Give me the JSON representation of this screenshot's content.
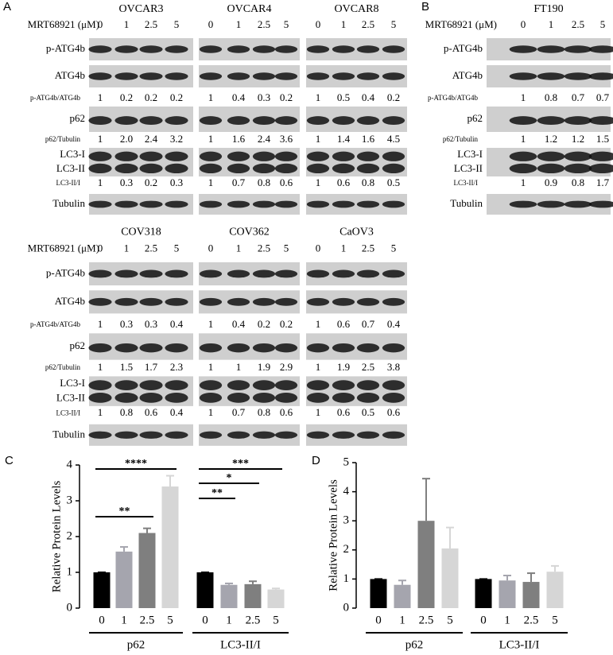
{
  "panel_a": {
    "label": "A",
    "treatment": "MRT68921 (μM)",
    "doses": [
      "0",
      "1",
      "2.5",
      "5"
    ],
    "rows": [
      "p-ATG4b",
      "ATG4b",
      "p62",
      "LC3-I",
      "LC3-II",
      "Tubulin"
    ],
    "ratio_names": [
      "p-ATG4b/ATG4b",
      "p62/Tubulin",
      "LC3-II/I"
    ],
    "cell_lines": [
      {
        "name": "OVCAR3",
        "ratios": [
          [
            "1",
            "0.2",
            "0.2",
            "0.2"
          ],
          [
            "1",
            "2.0",
            "2.4",
            "3.2"
          ],
          [
            "1",
            "0.3",
            "0.2",
            "0.3"
          ]
        ]
      },
      {
        "name": "OVCAR4",
        "ratios": [
          [
            "1",
            "0.4",
            "0.3",
            "0.2"
          ],
          [
            "1",
            "1.6",
            "2.4",
            "3.6"
          ],
          [
            "1",
            "0.7",
            "0.8",
            "0.6"
          ]
        ]
      },
      {
        "name": "OVCAR8",
        "ratios": [
          [
            "1",
            "0.5",
            "0.4",
            "0.2"
          ],
          [
            "1",
            "1.4",
            "1.6",
            "4.5"
          ],
          [
            "1",
            "0.6",
            "0.8",
            "0.5"
          ]
        ]
      },
      {
        "name": "COV318",
        "ratios": [
          [
            "1",
            "0.3",
            "0.3",
            "0.4"
          ],
          [
            "1",
            "1.5",
            "1.7",
            "2.3"
          ],
          [
            "1",
            "0.8",
            "0.6",
            "0.4"
          ]
        ]
      },
      {
        "name": "COV362",
        "ratios": [
          [
            "1",
            "0.4",
            "0.2",
            "0.2"
          ],
          [
            "1",
            "1",
            "1.9",
            "2.9"
          ],
          [
            "1",
            "0.7",
            "0.8",
            "0.6"
          ]
        ]
      },
      {
        "name": "CaOV3",
        "ratios": [
          [
            "1",
            "0.6",
            "0.7",
            "0.4"
          ],
          [
            "1",
            "1.9",
            "2.5",
            "3.8"
          ],
          [
            "1",
            "0.6",
            "0.5",
            "0.6"
          ]
        ]
      }
    ]
  },
  "panel_b": {
    "label": "B",
    "treatment": "MRT68921 (μM)",
    "doses": [
      "0",
      "1",
      "2.5",
      "5"
    ],
    "rows": [
      "p-ATG4b",
      "ATG4b",
      "p62",
      "LC3-I",
      "LC3-II",
      "Tubulin"
    ],
    "ratio_names": [
      "p-ATG4b/ATG4b",
      "p62/Tubulin",
      "LC3-II/I"
    ],
    "cell_lines": [
      {
        "name": "FT190",
        "ratios": [
          [
            "1",
            "0.8",
            "0.7",
            "0.7"
          ],
          [
            "1",
            "1.2",
            "1.2",
            "1.5"
          ],
          [
            "1",
            "0.9",
            "0.8",
            "1.7"
          ]
        ]
      }
    ]
  },
  "chart_data": [
    {
      "type": "bar",
      "label": "C",
      "ylabel": "Relative Protein Levels",
      "ylim": [
        0,
        4
      ],
      "yticks": [
        0,
        1,
        2,
        3,
        4
      ],
      "categories": [
        "0",
        "1",
        "2.5",
        "5"
      ],
      "colors": [
        "#000000",
        "#a5a5ae",
        "#7f7f7f",
        "#d6d6d6"
      ],
      "series": [
        {
          "name": "p62",
          "values": [
            1,
            1.58,
            2.1,
            3.4
          ],
          "errors": [
            0,
            0.13,
            0.13,
            0.3
          ]
        },
        {
          "name": "LC3-II/I",
          "values": [
            1,
            0.65,
            0.67,
            0.52
          ],
          "errors": [
            0,
            0.04,
            0.08,
            0.03
          ]
        }
      ],
      "annotations": [
        {
          "text": "****",
          "series": 0,
          "from": 0,
          "to": 3
        },
        {
          "text": "**",
          "series": 0,
          "from": 0,
          "to": 2
        },
        {
          "text": "***",
          "series": 1,
          "from": 0,
          "to": 3
        },
        {
          "text": "*",
          "series": 1,
          "from": 0,
          "to": 2
        },
        {
          "text": "**",
          "series": 1,
          "from": 0,
          "to": 1
        }
      ]
    },
    {
      "type": "bar",
      "label": "D",
      "ylabel": "Relative Protein Levels",
      "ylim": [
        0,
        5
      ],
      "yticks": [
        0,
        1,
        2,
        3,
        4,
        5
      ],
      "categories": [
        "0",
        "1",
        "2.5",
        "5"
      ],
      "colors": [
        "#000000",
        "#a5a5ae",
        "#7f7f7f",
        "#d6d6d6"
      ],
      "series": [
        {
          "name": "p62",
          "values": [
            1,
            0.8,
            3.0,
            2.05
          ],
          "errors": [
            0,
            0.15,
            1.45,
            0.72
          ]
        },
        {
          "name": "LC3-II/I",
          "values": [
            1,
            0.95,
            0.9,
            1.25
          ],
          "errors": [
            0,
            0.17,
            0.3,
            0.2
          ]
        }
      ]
    }
  ]
}
